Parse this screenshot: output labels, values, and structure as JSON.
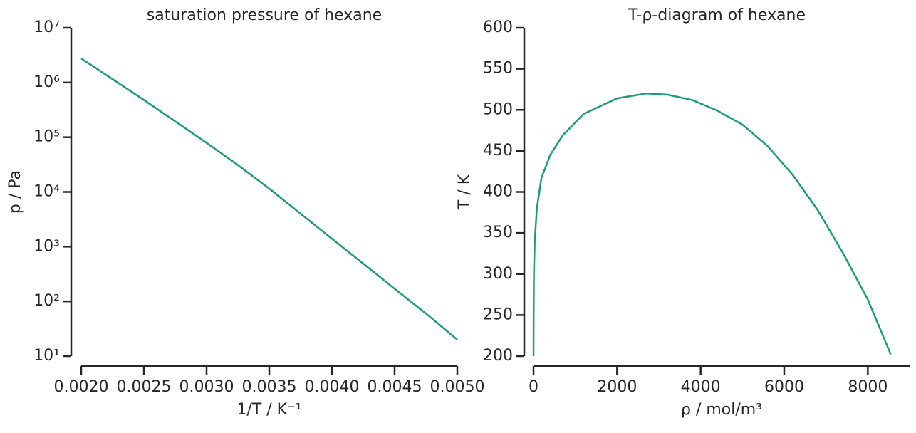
{
  "chart_data": [
    {
      "type": "line",
      "title": "saturation pressure of hexane",
      "xlabel": "1/T / K⁻¹",
      "ylabel": "p / Pa",
      "ylog": true,
      "color": "#1b9e77",
      "x": [
        0.002,
        0.00225,
        0.0025,
        0.00275,
        0.003,
        0.00325,
        0.0035,
        0.00375,
        0.004,
        0.00425,
        0.0045,
        0.00475,
        0.005
      ],
      "values": [
        2750000,
        1150000,
        480000,
        195000,
        79000,
        31000,
        11500,
        4000,
        1400,
        490,
        170,
        60,
        20
      ],
      "xlim": [
        0.002,
        0.005
      ],
      "xticks": [
        {
          "value": 0.002,
          "label": "0.0020"
        },
        {
          "value": 0.0025,
          "label": "0.0025"
        },
        {
          "value": 0.003,
          "label": "0.0030"
        },
        {
          "value": 0.0035,
          "label": "0.0035"
        },
        {
          "value": 0.004,
          "label": "0.0040"
        },
        {
          "value": 0.0045,
          "label": "0.0045"
        },
        {
          "value": 0.005,
          "label": "0.0050"
        }
      ],
      "ylim": [
        10,
        10000000
      ],
      "yticks": [
        {
          "value": 10,
          "label": "10¹"
        },
        {
          "value": 100,
          "label": "10²"
        },
        {
          "value": 1000,
          "label": "10³"
        },
        {
          "value": 10000,
          "label": "10⁴"
        },
        {
          "value": 100000,
          "label": "10⁵"
        },
        {
          "value": 1000000,
          "label": "10⁶"
        },
        {
          "value": 10000000,
          "label": "10⁷"
        }
      ]
    },
    {
      "type": "line",
      "title": "T-ρ-diagram of hexane",
      "xlabel": "ρ / mol/m³",
      "ylabel": "T / K",
      "ylog": false,
      "color": "#1b9e77",
      "x": [
        0.5,
        3,
        10,
        30,
        80,
        190,
        400,
        700,
        1200,
        2000,
        2700,
        3200,
        3800,
        4400,
        5000,
        5600,
        6200,
        6800,
        7400,
        8000,
        8550
      ],
      "values": [
        200,
        250,
        300,
        340,
        380,
        417,
        445,
        469,
        495,
        514,
        520,
        518.5,
        512,
        499,
        482,
        456,
        421,
        378,
        326,
        269,
        202
      ],
      "xlim": [
        0,
        9000
      ],
      "xticks": [
        0,
        2000,
        4000,
        6000,
        8000
      ],
      "ylim": [
        200,
        600
      ],
      "yticks": [
        200,
        250,
        300,
        350,
        400,
        450,
        500,
        550,
        600
      ]
    }
  ]
}
